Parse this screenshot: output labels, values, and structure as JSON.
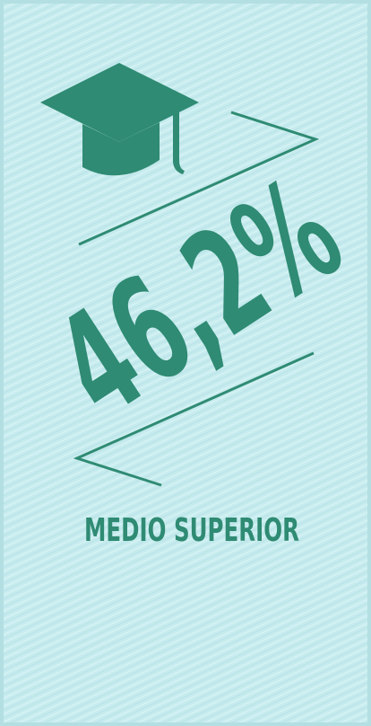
{
  "stat": {
    "value": "46,2%",
    "label": "MEDIO SUPERIOR"
  }
}
